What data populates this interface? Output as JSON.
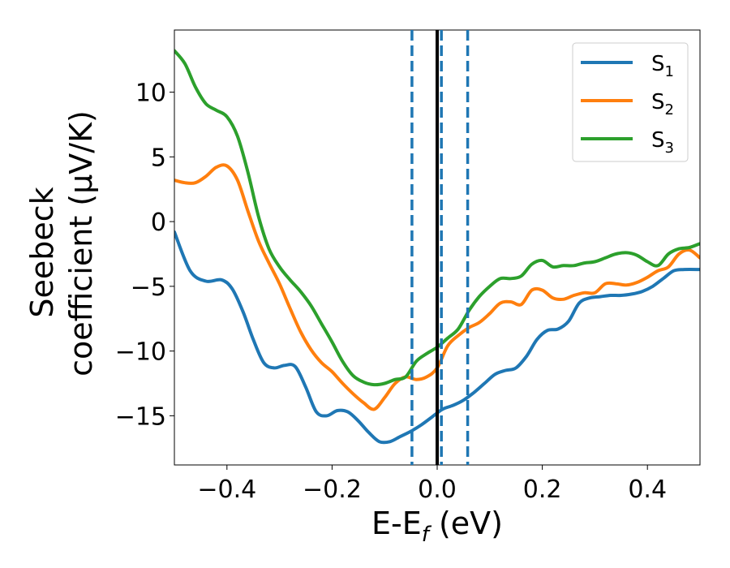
{
  "chart_data": {
    "type": "line",
    "title": "",
    "xlabel": "E-E_f (eV)",
    "xlabel_parts": {
      "main": "E-E",
      "sub": "f",
      "unit": " (eV)"
    },
    "ylabel_line1": "Seebeck",
    "ylabel_line2": "coefficient  (μV/K)",
    "xlim": [
      -0.5,
      0.5
    ],
    "ylim": [
      -18.8,
      14.8
    ],
    "xticks": [
      -0.4,
      -0.2,
      0.0,
      0.2,
      0.4
    ],
    "xtick_labels": [
      "−0.4",
      "−0.2",
      "0.0",
      "0.2",
      "0.4"
    ],
    "yticks": [
      -15,
      -10,
      -5,
      0,
      5,
      10
    ],
    "ytick_labels": [
      "−15",
      "−10",
      "−5",
      "0",
      "5",
      "10"
    ],
    "grid": false,
    "legend_position": "top-right",
    "vlines": [
      {
        "x": 0.0,
        "style": "solid",
        "color": "#000000"
      },
      {
        "x": -0.048,
        "style": "dashed",
        "color": "#1f77b4"
      },
      {
        "x": 0.008,
        "style": "dashed",
        "color": "#1f77b4"
      },
      {
        "x": 0.058,
        "style": "dashed",
        "color": "#1f77b4"
      }
    ],
    "series": [
      {
        "name": "S1",
        "name_main": "S",
        "name_sub": "1",
        "color": "#1f77b4",
        "x": [
          -0.5,
          -0.47,
          -0.44,
          -0.41,
          -0.39,
          -0.37,
          -0.35,
          -0.33,
          -0.31,
          -0.29,
          -0.27,
          -0.25,
          -0.23,
          -0.21,
          -0.19,
          -0.17,
          -0.15,
          -0.13,
          -0.11,
          -0.09,
          -0.07,
          -0.05,
          -0.03,
          -0.01,
          0.01,
          0.03,
          0.05,
          0.07,
          0.09,
          0.11,
          0.13,
          0.15,
          0.17,
          0.19,
          0.21,
          0.23,
          0.25,
          0.27,
          0.29,
          0.31,
          0.33,
          0.35,
          0.37,
          0.39,
          0.41,
          0.43,
          0.45,
          0.47,
          0.5
        ],
        "y": [
          -0.8,
          -3.8,
          -4.6,
          -4.5,
          -5.2,
          -6.9,
          -9.1,
          -10.9,
          -11.3,
          -11.1,
          -11.2,
          -12.8,
          -14.7,
          -15.0,
          -14.6,
          -14.7,
          -15.4,
          -16.3,
          -17.0,
          -17.0,
          -16.6,
          -16.2,
          -15.7,
          -15.1,
          -14.5,
          -14.2,
          -13.8,
          -13.2,
          -12.5,
          -11.8,
          -11.5,
          -11.3,
          -10.4,
          -9.1,
          -8.4,
          -8.3,
          -7.7,
          -6.3,
          -5.9,
          -5.8,
          -5.7,
          -5.7,
          -5.6,
          -5.4,
          -5.0,
          -4.4,
          -3.8,
          -3.7,
          -3.7
        ]
      },
      {
        "name": "S2",
        "name_main": "S",
        "name_sub": "2",
        "color": "#ff7f0e",
        "x": [
          -0.5,
          -0.48,
          -0.46,
          -0.44,
          -0.42,
          -0.4,
          -0.38,
          -0.36,
          -0.34,
          -0.32,
          -0.3,
          -0.28,
          -0.26,
          -0.24,
          -0.22,
          -0.2,
          -0.18,
          -0.16,
          -0.14,
          -0.12,
          -0.1,
          -0.08,
          -0.06,
          -0.04,
          -0.02,
          0.0,
          0.02,
          0.04,
          0.06,
          0.08,
          0.1,
          0.12,
          0.14,
          0.16,
          0.18,
          0.2,
          0.22,
          0.24,
          0.26,
          0.28,
          0.3,
          0.32,
          0.34,
          0.36,
          0.38,
          0.4,
          0.42,
          0.44,
          0.46,
          0.48,
          0.5
        ],
        "y": [
          3.2,
          3.0,
          3.0,
          3.5,
          4.2,
          4.3,
          3.2,
          0.8,
          -1.5,
          -3.2,
          -4.8,
          -6.7,
          -8.5,
          -9.9,
          -10.9,
          -11.6,
          -12.5,
          -13.3,
          -14.0,
          -14.5,
          -13.6,
          -12.5,
          -12.0,
          -12.2,
          -12.0,
          -11.3,
          -9.6,
          -8.8,
          -8.2,
          -7.8,
          -7.1,
          -6.3,
          -6.2,
          -6.4,
          -5.3,
          -5.3,
          -5.9,
          -6.0,
          -5.7,
          -5.5,
          -5.5,
          -4.8,
          -4.8,
          -4.9,
          -4.7,
          -4.3,
          -3.8,
          -3.5,
          -2.5,
          -2.2,
          -2.8
        ]
      },
      {
        "name": "S3",
        "name_main": "S",
        "name_sub": "3",
        "color": "#2ca02c",
        "x": [
          -0.5,
          -0.48,
          -0.46,
          -0.44,
          -0.42,
          -0.4,
          -0.38,
          -0.36,
          -0.34,
          -0.32,
          -0.3,
          -0.28,
          -0.26,
          -0.24,
          -0.22,
          -0.2,
          -0.18,
          -0.16,
          -0.14,
          -0.12,
          -0.1,
          -0.08,
          -0.06,
          -0.04,
          -0.02,
          0.0,
          0.02,
          0.04,
          0.06,
          0.08,
          0.1,
          0.12,
          0.14,
          0.16,
          0.18,
          0.2,
          0.22,
          0.24,
          0.26,
          0.28,
          0.3,
          0.32,
          0.34,
          0.36,
          0.38,
          0.4,
          0.42,
          0.44,
          0.46,
          0.48,
          0.5
        ],
        "y": [
          13.2,
          12.2,
          10.4,
          9.1,
          8.6,
          8.1,
          6.6,
          3.8,
          0.4,
          -2.1,
          -3.5,
          -4.5,
          -5.4,
          -6.5,
          -7.9,
          -9.3,
          -10.8,
          -11.9,
          -12.4,
          -12.6,
          -12.5,
          -12.2,
          -12.0,
          -10.8,
          -10.2,
          -9.7,
          -9.0,
          -8.3,
          -6.9,
          -5.8,
          -5.0,
          -4.4,
          -4.4,
          -4.2,
          -3.3,
          -3.0,
          -3.5,
          -3.4,
          -3.4,
          -3.2,
          -3.1,
          -2.8,
          -2.5,
          -2.4,
          -2.6,
          -3.1,
          -3.4,
          -2.5,
          -2.1,
          -2.0,
          -1.7
        ]
      }
    ]
  }
}
